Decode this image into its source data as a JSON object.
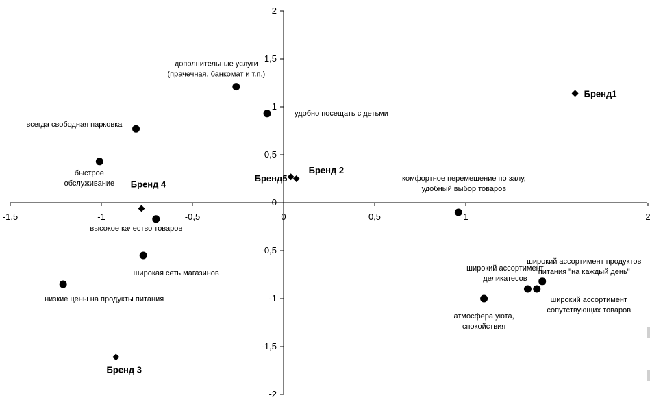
{
  "chart_data": {
    "type": "scatter",
    "xlim": [
      -1.5,
      2
    ],
    "ylim": [
      -2,
      2
    ],
    "x_ticks": [
      {
        "value": -1.5,
        "label": "-1,5"
      },
      {
        "value": -1,
        "label": "-1"
      },
      {
        "value": -0.5,
        "label": "-0,5"
      },
      {
        "value": 0,
        "label": "0"
      },
      {
        "value": 0.5,
        "label": "0,5"
      },
      {
        "value": 1,
        "label": "1"
      },
      {
        "value": 2,
        "label": "2"
      }
    ],
    "y_ticks": [
      {
        "value": 2,
        "label": "2"
      },
      {
        "value": 1.5,
        "label": "1,5"
      },
      {
        "value": 1,
        "label": "1"
      },
      {
        "value": 0.5,
        "label": "0,5"
      },
      {
        "value": 0,
        "label": "0"
      },
      {
        "value": -0.5,
        "label": "-0,5"
      },
      {
        "value": -1,
        "label": "-1"
      },
      {
        "value": -1.5,
        "label": "-1,5"
      },
      {
        "value": -2,
        "label": "-2"
      }
    ],
    "grid": false,
    "series": [
      {
        "marker": "circle",
        "points": [
          {
            "x": -0.26,
            "y": 1.21,
            "label_lines": [
              "дополнительные услуги",
              "(прачечная, банкомат и т.п.)"
            ]
          },
          {
            "x": -0.09,
            "y": 0.93,
            "label_lines": [
              "удобно посещать с детьми"
            ]
          },
          {
            "x": -0.81,
            "y": 0.77,
            "label_lines": [
              "всегда свободная парковка"
            ]
          },
          {
            "x": -1.01,
            "y": 0.43,
            "label_lines": [
              "быстрое",
              "обслуживание"
            ]
          },
          {
            "x": 0.96,
            "y": -0.1,
            "label_lines": [
              "комфортное перемещение по залу,",
              "удобный выбор товаров"
            ]
          },
          {
            "x": -0.7,
            "y": -0.17,
            "label_lines": [
              "высокое качество товаров"
            ]
          },
          {
            "x": -0.77,
            "y": -0.55,
            "label_lines": [
              "широкая сеть магазинов"
            ]
          },
          {
            "x": -1.21,
            "y": -0.85,
            "label_lines": [
              "низкие цены на продукты питания"
            ]
          },
          {
            "x": 1.1,
            "y": -1.0,
            "label_lines": [
              "атмосфера уюта,",
              "спокойствия"
            ]
          },
          {
            "x": 1.34,
            "y": -0.9,
            "label_lines": [
              "широкий ассортимент",
              "деликатесов"
            ]
          },
          {
            "x": 1.39,
            "y": -0.9,
            "label_lines": [
              "широкий ассортимент",
              "сопутствующих товаров"
            ]
          },
          {
            "x": 1.42,
            "y": -0.82,
            "label_lines": [
              "широкий ассортимент продуктов",
              "питания \"на каждый день\""
            ]
          }
        ]
      },
      {
        "marker": "diamond",
        "points": [
          {
            "x": 1.6,
            "y": 1.14,
            "label_lines": [
              "Бренд1"
            ]
          },
          {
            "x": 0.07,
            "y": 0.25,
            "label_lines": [
              "Бренд 2"
            ]
          },
          {
            "x": -0.92,
            "y": -1.61,
            "label_lines": [
              "Бренд 3"
            ]
          },
          {
            "x": -0.78,
            "y": -0.06,
            "label_lines": [
              "Бренд 4"
            ]
          },
          {
            "x": 0.04,
            "y": 0.27,
            "label_lines": [
              "Бренд5"
            ]
          }
        ]
      }
    ]
  }
}
